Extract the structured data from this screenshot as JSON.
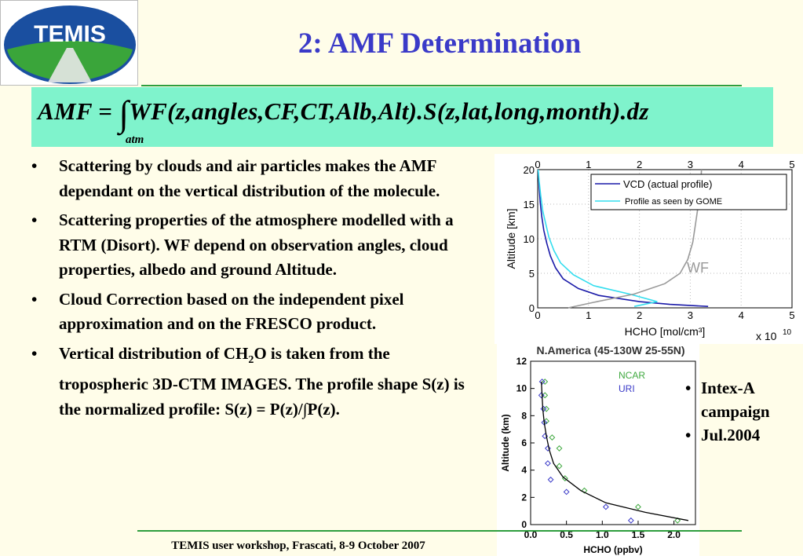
{
  "logo": {
    "text": "TEMIS"
  },
  "title": "2: AMF Determination",
  "formula": {
    "lhs": "AMF",
    "eq": "=",
    "integral": "∫",
    "body": "WF(z,angles,CF,CT,Alb,Alt).S(z,lat,long,month).dz",
    "limit": "atm"
  },
  "bullets": [
    {
      "text": "Scattering by clouds and air particles makes the AMF dependant on the vertical distribution of the molecule."
    },
    {
      "text": "Scattering properties of the atmosphere modelled with a RTM (Disort). WF depend on observation angles, cloud properties, albedo and ground Altitude."
    },
    {
      "text": "Cloud Correction based on the independent pixel approximation and on the FRESCO product."
    },
    {
      "pre": "Vertical distribution of CH",
      "sub": "2",
      "post": "O is taken from the tropospheric 3D-CTM IMAGES. The profile shape S(z) is the normalized profile: S(z) = P(z)/∫P(z)."
    }
  ],
  "side_bullets": [
    "Intex-A campaign",
    "Jul.2004"
  ],
  "footer": "TEMIS user workshop, Frascati, 8-9 October 2007",
  "colors": {
    "title": "#3a3ac8",
    "formula_bg": "#7ff3cc",
    "line": "#2e9e3e",
    "background": "#fffde9"
  },
  "chart_data": [
    {
      "type": "line",
      "xlabel": "HCHO [mol/cm³]",
      "x_multiplier_label": "x 10",
      "x_multiplier_exp": "10",
      "ylabel": "Altitude [km]",
      "xlim": [
        0,
        5
      ],
      "ylim": [
        0,
        20
      ],
      "xticks": [
        "0",
        "1",
        "2",
        "3",
        "4",
        "5"
      ],
      "yticks": [
        "0",
        "5",
        "10",
        "15",
        "20"
      ],
      "grid": true,
      "legend_position": "top-right",
      "annotation": "WF",
      "series": [
        {
          "name": "VCD (actual profile)",
          "color": "#1a1aa8",
          "x": [
            3.35,
            2.6,
            2.0,
            1.2,
            0.8,
            0.5,
            0.35,
            0.25,
            0.18,
            0.12,
            0.08,
            0.05,
            0.03,
            0.01
          ],
          "y": [
            0.2,
            0.5,
            0.9,
            1.8,
            2.8,
            4.2,
            5.8,
            7.5,
            9.3,
            11.2,
            13.2,
            15.3,
            17.5,
            20
          ]
        },
        {
          "name": "Profile as seen by GOME",
          "color": "#33ddee",
          "x": [
            1.9,
            2.35,
            1.8,
            1.1,
            0.7,
            0.45,
            0.32,
            0.22,
            0.16,
            0.1,
            0.06,
            0.03,
            0.01
          ],
          "y": [
            0.2,
            0.9,
            2.0,
            3.2,
            4.8,
            6.5,
            8.3,
            10.2,
            12.1,
            14.0,
            16.2,
            18.3,
            20
          ]
        },
        {
          "name": "",
          "color": "#999999",
          "x": [
            0.6,
            1.1,
            1.9,
            2.5,
            2.8,
            2.95,
            3.05,
            3.1,
            3.15,
            3.2,
            3.22
          ],
          "y": [
            0.0,
            0.8,
            2.0,
            3.5,
            5.0,
            7.0,
            9.5,
            12.0,
            14.5,
            17.5,
            20
          ]
        }
      ]
    },
    {
      "type": "scatter",
      "title": "N.America (45-130W 25-55N)",
      "xlabel": "HCHO (ppbv)",
      "ylabel": "Altitude (km)",
      "xlim": [
        0,
        2.3
      ],
      "ylim": [
        0,
        12
      ],
      "xticks": [
        "0.0",
        "0.5",
        "1.0",
        "1.5",
        "2.0"
      ],
      "xtick_values": [
        0,
        0.5,
        1.0,
        1.5,
        2.0
      ],
      "yticks": [
        "0",
        "2",
        "4",
        "6",
        "8",
        "10",
        "12"
      ],
      "series": [
        {
          "name": "NCAR",
          "color": "#3fa83f",
          "marker": "diamond",
          "x": [
            2.05,
            1.5,
            0.75,
            0.48,
            0.4,
            0.4,
            0.3,
            0.22,
            0.22,
            0.2,
            0.2
          ],
          "y": [
            0.3,
            1.3,
            2.5,
            3.4,
            4.3,
            5.6,
            6.4,
            7.6,
            8.5,
            9.5,
            10.5
          ]
        },
        {
          "name": "URI",
          "color": "#3a3ac8",
          "marker": "diamond",
          "x": [
            1.4,
            1.05,
            0.5,
            0.28,
            0.24,
            0.24,
            0.2,
            0.19,
            0.18,
            0.15,
            0.16
          ],
          "y": [
            0.3,
            1.3,
            2.4,
            3.3,
            4.5,
            5.6,
            6.5,
            7.5,
            8.5,
            9.5,
            10.5
          ]
        },
        {
          "name": "",
          "color": "#000000",
          "marker": "line",
          "x": [
            2.2,
            1.6,
            1.05,
            0.7,
            0.45,
            0.32,
            0.26,
            0.22,
            0.19,
            0.17,
            0.16,
            0.15
          ],
          "y": [
            0.3,
            0.9,
            1.6,
            2.5,
            3.5,
            4.5,
            5.5,
            6.5,
            7.5,
            8.5,
            9.5,
            10.5
          ]
        }
      ]
    }
  ]
}
